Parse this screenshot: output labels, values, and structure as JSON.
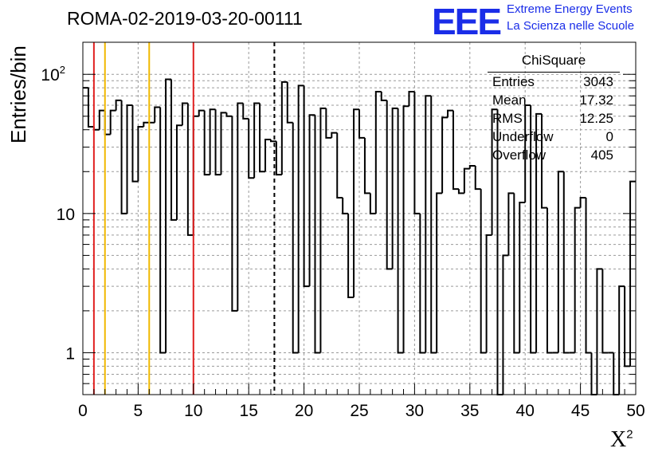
{
  "title": "ROMA-02-2019-03-20-00111",
  "logo": {
    "mark": "EEE",
    "line1": "Extreme Energy Events",
    "line2": "La Scienza nelle Scuole"
  },
  "stats": {
    "name": "ChiSquare",
    "rows": [
      {
        "key": "Entries",
        "value": "3043"
      },
      {
        "key": "Mean",
        "value": "17.32"
      },
      {
        "key": "RMS",
        "value": "12.25"
      },
      {
        "key": "Underflow",
        "value": "0"
      },
      {
        "key": "Overflow",
        "value": "405"
      }
    ]
  },
  "colors": {
    "red": "#e02020",
    "yellow": "#f0b800",
    "grid": "#9a9a9a",
    "line": "#000000"
  },
  "chart_data": {
    "type": "histogram",
    "xlabel": "X",
    "xlabel_sup": "2",
    "ylabel": "Entries/bin",
    "xlim": [
      0,
      50
    ],
    "ylim": [
      0.5,
      170
    ],
    "yscale": "log",
    "grid": true,
    "bin_width": 0.5,
    "x_ticks": [
      0,
      5,
      10,
      15,
      20,
      25,
      30,
      35,
      40,
      45,
      50
    ],
    "y_ticks": [
      {
        "value": 1,
        "label": "1"
      },
      {
        "value": 10,
        "label": "10"
      },
      {
        "value": 100,
        "label": "10",
        "sup": "2"
      }
    ],
    "values": [
      80,
      42,
      40,
      55,
      37,
      55,
      65,
      10,
      60,
      17,
      42,
      45,
      45,
      58,
      1,
      92,
      9,
      43,
      62,
      7,
      50,
      55,
      19,
      56,
      19,
      53,
      50,
      2,
      62,
      48,
      18,
      62,
      20,
      34,
      33,
      19,
      88,
      45,
      1,
      83,
      3,
      51,
      1,
      57,
      35,
      38,
      13,
      10,
      2.5,
      56,
      35,
      14,
      10,
      75,
      65,
      4,
      57,
      1,
      59,
      75,
      10,
      1,
      70,
      1,
      14,
      49,
      55,
      15,
      14,
      21,
      22,
      15,
      1,
      7,
      56,
      0.5,
      5,
      14,
      1,
      12,
      60,
      1,
      52,
      11,
      1,
      1,
      20,
      1,
      1,
      11,
      13,
      1,
      0.5,
      4,
      1,
      1,
      0.5,
      3,
      0.8,
      17
    ],
    "vlines": [
      {
        "x": 1,
        "color": "#e02020",
        "style": "solid"
      },
      {
        "x": 2,
        "color": "#f0b800",
        "style": "solid"
      },
      {
        "x": 6,
        "color": "#f0b800",
        "style": "solid"
      },
      {
        "x": 10,
        "color": "#e02020",
        "style": "solid"
      },
      {
        "x": 17.32,
        "color": "#000000",
        "style": "dashed"
      }
    ]
  }
}
